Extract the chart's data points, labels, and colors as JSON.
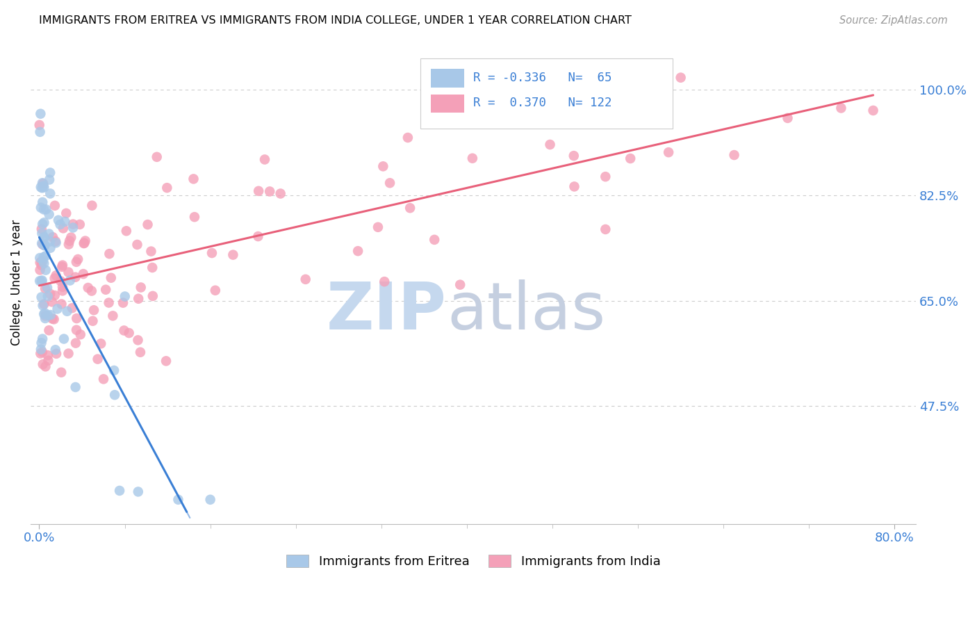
{
  "title": "IMMIGRANTS FROM ERITREA VS IMMIGRANTS FROM INDIA COLLEGE, UNDER 1 YEAR CORRELATION CHART",
  "source": "Source: ZipAtlas.com",
  "ylabel": "College, Under 1 year",
  "xmin": 0.0,
  "xmax": 0.8,
  "ymin": 0.28,
  "ymax": 1.08,
  "y_tick_values": [
    0.475,
    0.65,
    0.825,
    1.0
  ],
  "y_tick_labels": [
    "47.5%",
    "65.0%",
    "82.5%",
    "100.0%"
  ],
  "color_eritrea": "#a8c8e8",
  "color_india": "#f4a0b8",
  "line_color_eritrea": "#3a7fd5",
  "line_color_india": "#e8607a",
  "watermark_zip_color": "#c5d8ee",
  "watermark_atlas_color": "#c5cfe0",
  "eritrea_line_x0": 0.0,
  "eritrea_line_y0": 0.755,
  "eritrea_line_slope": -3.3,
  "india_line_x0": 0.0,
  "india_line_y0": 0.675,
  "india_line_slope": 0.405
}
